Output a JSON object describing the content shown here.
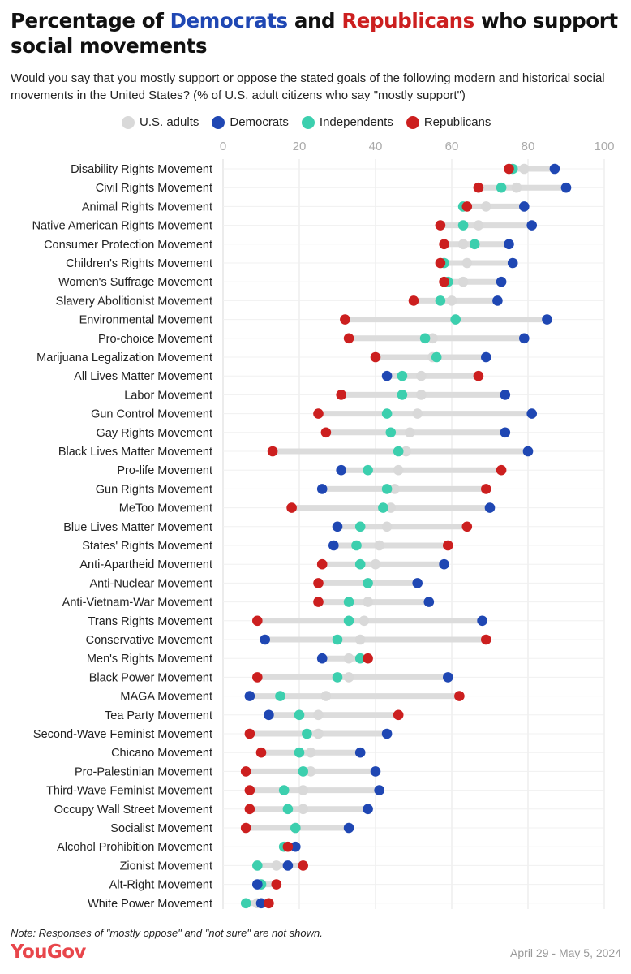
{
  "header": {
    "title_part1": "Percentage of ",
    "title_dem": "Democrats",
    "title_part2": " and ",
    "title_rep": "Republicans",
    "title_part3": " who support social movements",
    "subtitle": "Would you say that you mostly support or oppose the stated goals of the following modern and historical social movements in the United States? (% of U.S. adult citizens who say \"mostly support\")"
  },
  "footer": {
    "note": "Note: Responses of \"mostly oppose\" and \"not sure\" are not shown.",
    "logo": "YouGov",
    "date": "April 29 - May 5, 2024"
  },
  "colors": {
    "adults": "#d9d9d9",
    "dem": "#1f47b3",
    "ind": "#3ccfae",
    "rep": "#cc1f1f",
    "range": "#dcdcdc",
    "grid": "#e6e6e6"
  },
  "chart_data": {
    "type": "dot-range",
    "xlim": [
      0,
      100
    ],
    "xticks": [
      0,
      20,
      40,
      60,
      80,
      100
    ],
    "grid": true,
    "legend_position": "top",
    "series": [
      {
        "key": "adults",
        "name": "U.S. adults"
      },
      {
        "key": "dem",
        "name": "Democrats"
      },
      {
        "key": "ind",
        "name": "Independents"
      },
      {
        "key": "rep",
        "name": "Republicans"
      }
    ],
    "rows": [
      {
        "label": "Disability Rights Movement",
        "adults": 79,
        "dem": 87,
        "ind": 76,
        "rep": 75
      },
      {
        "label": "Civil Rights Movement",
        "adults": 77,
        "dem": 90,
        "ind": 73,
        "rep": 67
      },
      {
        "label": "Animal Rights Movement",
        "adults": 69,
        "dem": 79,
        "ind": 63,
        "rep": 64
      },
      {
        "label": "Native American Rights Movement",
        "adults": 67,
        "dem": 81,
        "ind": 63,
        "rep": 57
      },
      {
        "label": "Consumer Protection Movement",
        "adults": 63,
        "dem": 75,
        "ind": 66,
        "rep": 58
      },
      {
        "label": "Children's Rights Movement",
        "adults": 64,
        "dem": 76,
        "ind": 58,
        "rep": 57
      },
      {
        "label": "Women's Suffrage Movement",
        "adults": 63,
        "dem": 73,
        "ind": 59,
        "rep": 58
      },
      {
        "label": "Slavery Abolitionist Movement",
        "adults": 60,
        "dem": 72,
        "ind": 57,
        "rep": 50
      },
      {
        "label": "Environmental Movement",
        "adults": 61,
        "dem": 85,
        "ind": 61,
        "rep": 32
      },
      {
        "label": "Pro-choice Movement",
        "adults": 55,
        "dem": 79,
        "ind": 53,
        "rep": 33
      },
      {
        "label": "Marijuana Legalization Movement",
        "adults": 55,
        "dem": 69,
        "ind": 56,
        "rep": 40
      },
      {
        "label": "All Lives Matter Movement",
        "adults": 52,
        "dem": 43,
        "ind": 47,
        "rep": 67
      },
      {
        "label": "Labor Movement",
        "adults": 52,
        "dem": 74,
        "ind": 47,
        "rep": 31
      },
      {
        "label": "Gun Control Movement",
        "adults": 51,
        "dem": 81,
        "ind": 43,
        "rep": 25
      },
      {
        "label": "Gay Rights Movement",
        "adults": 49,
        "dem": 74,
        "ind": 44,
        "rep": 27
      },
      {
        "label": "Black Lives Matter Movement",
        "adults": 48,
        "dem": 80,
        "ind": 46,
        "rep": 13
      },
      {
        "label": "Pro-life Movement",
        "adults": 46,
        "dem": 31,
        "ind": 38,
        "rep": 73
      },
      {
        "label": "Gun Rights Movement",
        "adults": 45,
        "dem": 26,
        "ind": 43,
        "rep": 69
      },
      {
        "label": "MeToo Movement",
        "adults": 44,
        "dem": 70,
        "ind": 42,
        "rep": 18
      },
      {
        "label": "Blue Lives Matter Movement",
        "adults": 43,
        "dem": 30,
        "ind": 36,
        "rep": 64
      },
      {
        "label": "States' Rights Movement",
        "adults": 41,
        "dem": 29,
        "ind": 35,
        "rep": 59
      },
      {
        "label": "Anti-Apartheid Movement",
        "adults": 40,
        "dem": 58,
        "ind": 36,
        "rep": 26
      },
      {
        "label": "Anti-Nuclear Movement",
        "adults": 38,
        "dem": 51,
        "ind": 38,
        "rep": 25
      },
      {
        "label": "Anti-Vietnam-War Movement",
        "adults": 38,
        "dem": 54,
        "ind": 33,
        "rep": 25
      },
      {
        "label": "Trans Rights Movement",
        "adults": 37,
        "dem": 68,
        "ind": 33,
        "rep": 9
      },
      {
        "label": "Conservative Movement",
        "adults": 36,
        "dem": 11,
        "ind": 30,
        "rep": 69
      },
      {
        "label": "Men's Rights Movement",
        "adults": 33,
        "dem": 26,
        "ind": 36,
        "rep": 38
      },
      {
        "label": "Black Power Movement",
        "adults": 33,
        "dem": 59,
        "ind": 30,
        "rep": 9
      },
      {
        "label": "MAGA Movement",
        "adults": 27,
        "dem": 7,
        "ind": 15,
        "rep": 62
      },
      {
        "label": "Tea Party Movement",
        "adults": 25,
        "dem": 12,
        "ind": 20,
        "rep": 46
      },
      {
        "label": "Second-Wave Feminist Movement",
        "adults": 25,
        "dem": 43,
        "ind": 22,
        "rep": 7
      },
      {
        "label": "Chicano Movement",
        "adults": 23,
        "dem": 36,
        "ind": 20,
        "rep": 10
      },
      {
        "label": "Pro-Palestinian Movement",
        "adults": 23,
        "dem": 40,
        "ind": 21,
        "rep": 6
      },
      {
        "label": "Third-Wave Feminist Movement",
        "adults": 21,
        "dem": 41,
        "ind": 16,
        "rep": 7
      },
      {
        "label": "Occupy Wall Street Movement",
        "adults": 21,
        "dem": 38,
        "ind": 17,
        "rep": 7
      },
      {
        "label": "Socialist Movement",
        "adults": 19,
        "dem": 33,
        "ind": 19,
        "rep": 6
      },
      {
        "label": "Alcohol Prohibition Movement",
        "adults": 16,
        "dem": 19,
        "ind": 16,
        "rep": 17
      },
      {
        "label": "Zionist Movement",
        "adults": 14,
        "dem": 17,
        "ind": 9,
        "rep": 21
      },
      {
        "label": "Alt-Right Movement",
        "adults": 10,
        "dem": 9,
        "ind": 10,
        "rep": 14
      },
      {
        "label": "White Power Movement",
        "adults": 9,
        "dem": 10,
        "ind": 6,
        "rep": 12
      }
    ]
  }
}
